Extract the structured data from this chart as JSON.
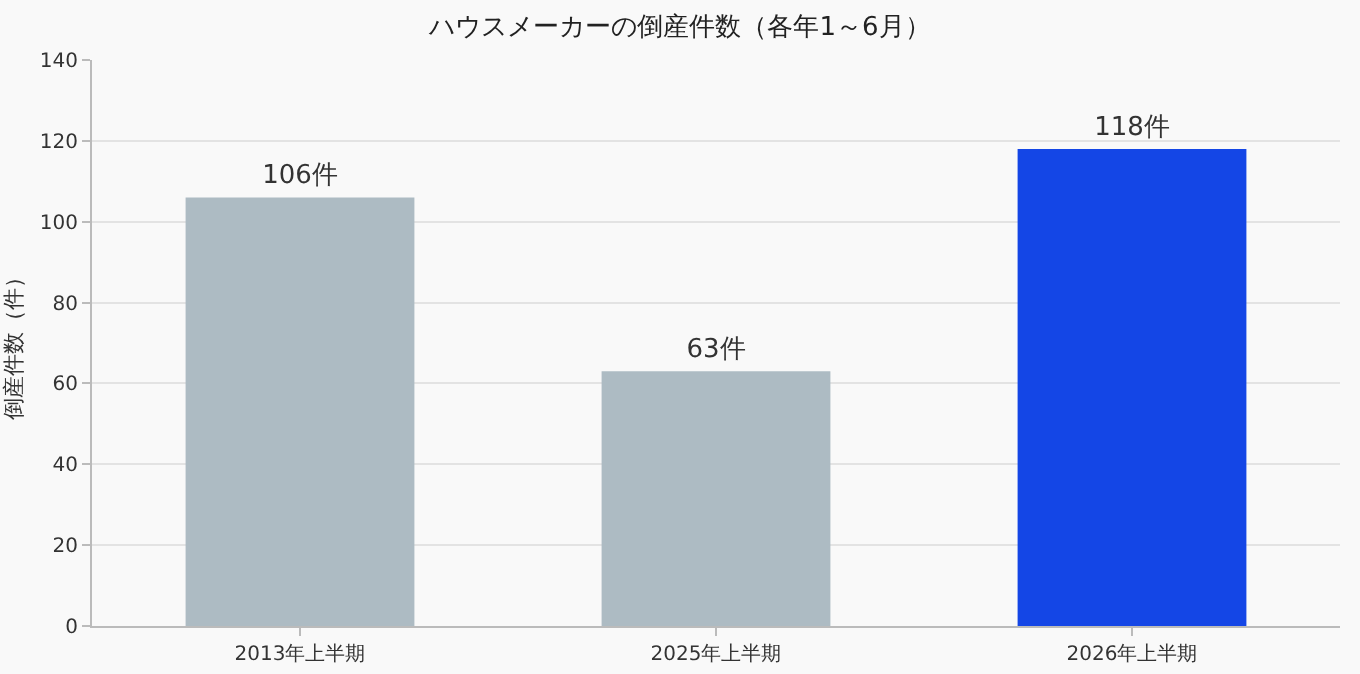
{
  "chart_data": {
    "type": "bar",
    "title": "ハウスメーカーの倒産件数（各年1～6月）",
    "ylabel": "倒産件数（件）",
    "categories": [
      "2013年上半期",
      "2025年上半期",
      "2026年上半期"
    ],
    "values": [
      106,
      63,
      118
    ],
    "colors": [
      "#adbbc3",
      "#adbbc3",
      "#1446e6"
    ],
    "value_labels": [
      "106件",
      "63件",
      "118件"
    ],
    "ylim": [
      0,
      140
    ],
    "yticks": [
      0,
      20,
      40,
      60,
      80,
      100,
      120,
      140
    ],
    "grid": "y"
  }
}
